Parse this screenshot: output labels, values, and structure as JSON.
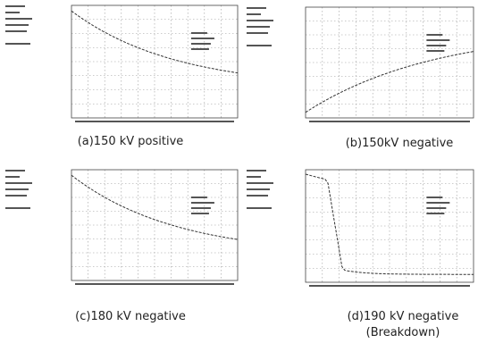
{
  "captions": {
    "a": "(a)150 kV positive",
    "b": "(b)150kV negative",
    "c": "(c)180 kV negative",
    "d": [
      "(d)190 kV negative",
      "(Breakdown)"
    ]
  }
}
